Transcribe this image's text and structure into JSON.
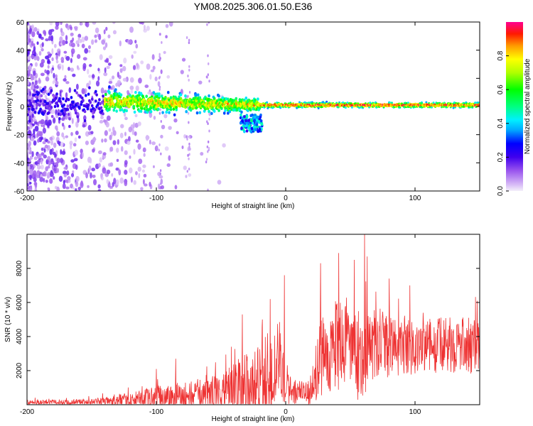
{
  "title": "YM08.2025.306.01.50.E36",
  "chart_data": [
    {
      "type": "heatmap",
      "xlabel": "Height of straight line (km)",
      "ylabel": "Frequency (Hz)",
      "xlim": [
        -200,
        150
      ],
      "ylim": [
        -60,
        60
      ],
      "x_ticks": [
        -200,
        -100,
        0,
        100
      ],
      "y_ticks": [
        -60,
        -40,
        -20,
        0,
        20,
        40,
        60
      ],
      "colorbar": {
        "label": "Normalized spectral amplitude",
        "range": [
          0.0,
          1.0
        ],
        "ticks": [
          0.0,
          0.2,
          0.4,
          0.6,
          0.8
        ]
      },
      "features": {
        "band_center_hz": 1,
        "dense_band_start_km": -140,
        "strong_band_start_km": -20,
        "scatter_region_km": [
          -200,
          -60
        ],
        "low_frequency_blob_km": [
          -35,
          -18
        ]
      }
    },
    {
      "type": "line",
      "xlabel": "Height of straight line (km)",
      "ylabel": "SNR (10 * v/v)",
      "xlim": [
        -200,
        150
      ],
      "ylim": [
        0,
        10000
      ],
      "x_ticks": [
        -200,
        -100,
        0,
        100
      ],
      "y_ticks": [
        2000,
        4000,
        6000,
        8000
      ],
      "series": [
        {
          "name": "SNR",
          "color": "#ee3333",
          "envelope": {
            "x": [
              -200,
              -150,
              -120,
              -100,
              -80,
              -60,
              -45,
              -35,
              -25,
              -15,
              -8,
              -5,
              -2,
              0,
              5,
              12,
              20,
              25,
              30,
              35,
              40,
              45,
              50,
              55,
              60,
              65,
              70,
              80,
              90,
              100,
              110,
              120,
              130,
              140,
              150
            ],
            "base": [
              150,
              150,
              250,
              400,
              450,
              550,
              650,
              900,
              1000,
              1200,
              2200,
              3000,
              2000,
              1000,
              700,
              700,
              600,
              2500,
              3000,
              3000,
              3500,
              3300,
              3500,
              2800,
              3000,
              3200,
              3300,
              3400,
              3500,
              3300,
              3400,
              3500,
              3500,
              3500,
              3300
            ],
            "amplitude": [
              150,
              200,
              500,
              800,
              1000,
              1200,
              1600,
              2200,
              2500,
              3000,
              3000,
              2500,
              2000,
              1500,
              900,
              800,
              700,
              2500,
              2500,
              2500,
              3000,
              2800,
              2500,
              3000,
              2800,
              2400,
              2200,
              2000,
              2000,
              1800,
              1800,
              1800,
              1800,
              1800,
              1800
            ]
          },
          "peaks": [
            {
              "x": -100,
              "y": 2100
            },
            {
              "x": -85,
              "y": 2700
            },
            {
              "x": -42,
              "y": 3400
            },
            {
              "x": -18,
              "y": 5000
            },
            {
              "x": -12,
              "y": 6200
            },
            {
              "x": -1,
              "y": 7600
            },
            {
              "x": 27,
              "y": 8300
            },
            {
              "x": 41,
              "y": 8900
            },
            {
              "x": 53,
              "y": 8500
            },
            {
              "x": 61,
              "y": 10000
            },
            {
              "x": 63,
              "y": 8700
            },
            {
              "x": 80,
              "y": 7400
            },
            {
              "x": 96,
              "y": 7000
            },
            {
              "x": 148,
              "y": 6100
            }
          ]
        }
      ]
    }
  ]
}
